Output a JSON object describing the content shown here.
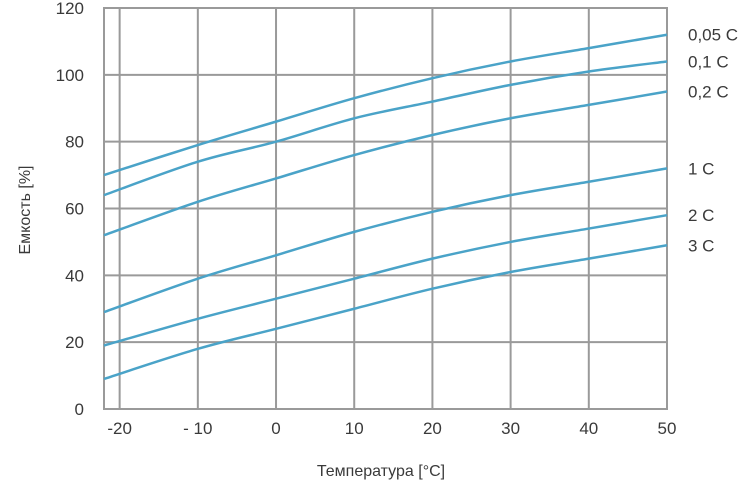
{
  "chart_data": {
    "type": "line",
    "xlabel": "Температура [°C]",
    "ylabel": "Емкость [%]",
    "xlim": [
      -22,
      50
    ],
    "ylim": [
      0,
      120
    ],
    "x_ticks": [
      -20,
      -10,
      0,
      10,
      20,
      30,
      40,
      50
    ],
    "x_tick_labels": [
      "-20",
      "- 10",
      "0",
      "10",
      "20",
      "30",
      "40",
      "50"
    ],
    "y_ticks": [
      0,
      20,
      40,
      60,
      80,
      100,
      120
    ],
    "y_tick_labels": [
      "0",
      "20",
      "40",
      "60",
      "80",
      "100",
      "120"
    ],
    "grid": true,
    "legend": "right-inline",
    "line_color": "#4aa3c8",
    "grid_color": "#9a9a9a",
    "series": [
      {
        "name": "0,05 C",
        "x": [
          -22,
          -10,
          0,
          10,
          20,
          30,
          40,
          50
        ],
        "values": [
          70,
          79,
          86,
          93,
          99,
          104,
          108,
          112
        ]
      },
      {
        "name": "0,1 C",
        "x": [
          -22,
          -10,
          0,
          10,
          20,
          30,
          40,
          50
        ],
        "values": [
          64,
          74,
          80,
          87,
          92,
          97,
          101,
          104
        ]
      },
      {
        "name": "0,2 C",
        "x": [
          -22,
          -10,
          0,
          10,
          20,
          30,
          40,
          50
        ],
        "values": [
          52,
          62,
          69,
          76,
          82,
          87,
          91,
          95
        ]
      },
      {
        "name": "1 C",
        "x": [
          -22,
          -10,
          0,
          10,
          20,
          30,
          40,
          50
        ],
        "values": [
          29,
          39,
          46,
          53,
          59,
          64,
          68,
          72
        ]
      },
      {
        "name": "2 C",
        "x": [
          -22,
          -10,
          0,
          10,
          20,
          30,
          40,
          50
        ],
        "values": [
          19,
          27,
          33,
          39,
          45,
          50,
          54,
          58
        ]
      },
      {
        "name": "3 C",
        "x": [
          -22,
          -10,
          0,
          10,
          20,
          30,
          40,
          50
        ],
        "values": [
          9,
          18,
          24,
          30,
          36,
          41,
          45,
          49
        ]
      }
    ]
  }
}
